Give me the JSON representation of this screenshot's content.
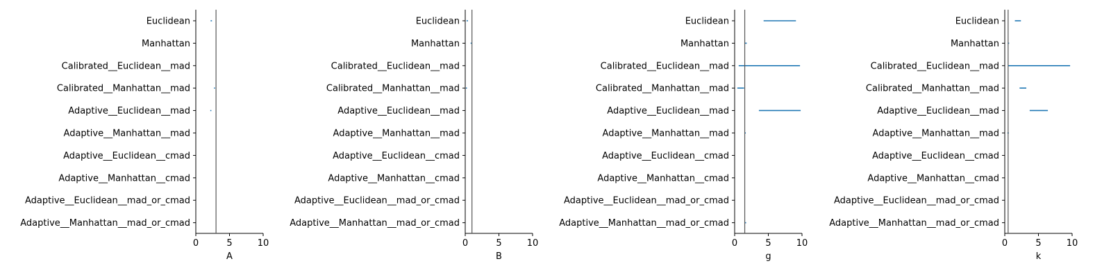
{
  "chart_data": [
    {
      "type": "errorbar",
      "xlabel": "A",
      "xlim": [
        0,
        10
      ],
      "xticks": [
        0,
        5,
        10
      ],
      "categories": [
        "Euclidean",
        "Manhattan",
        "Calibrated__Euclidean__mad",
        "Calibrated__Manhattan__mad",
        "Adaptive__Euclidean__mad",
        "Adaptive__Manhattan__mad",
        "Adaptive__Euclidean__cmad",
        "Adaptive__Manhattan__cmad",
        "Adaptive__Euclidean__mad_or_cmad",
        "Adaptive__Manhattan__mad_or_cmad"
      ],
      "intervals": [
        [
          2.2,
          2.4
        ],
        null,
        null,
        [
          2.7,
          2.8
        ],
        [
          2.15,
          2.3
        ],
        null,
        null,
        null,
        null,
        null
      ],
      "reference_line": 3.0
    },
    {
      "type": "errorbar",
      "xlabel": "B",
      "xlim": [
        0,
        10
      ],
      "xticks": [
        0,
        5,
        10
      ],
      "categories": [
        "Euclidean",
        "Manhattan",
        "Calibrated__Euclidean__mad",
        "Calibrated__Manhattan__mad",
        "Adaptive__Euclidean__mad",
        "Adaptive__Manhattan__mad",
        "Adaptive__Euclidean__cmad",
        "Adaptive__Manhattan__cmad",
        "Adaptive__Euclidean__mad_or_cmad",
        "Adaptive__Manhattan__mad_or_cmad"
      ],
      "intervals": [
        [
          0.2,
          0.4
        ],
        [
          0.8,
          0.95
        ],
        null,
        [
          0.1,
          0.25
        ],
        null,
        null,
        null,
        null,
        null,
        null
      ],
      "reference_line": 1.0
    },
    {
      "type": "errorbar",
      "xlabel": "g",
      "xlim": [
        0,
        10
      ],
      "xticks": [
        0,
        5,
        10
      ],
      "categories": [
        "Euclidean",
        "Manhattan",
        "Calibrated__Euclidean__mad",
        "Calibrated__Manhattan__mad",
        "Adaptive__Euclidean__mad",
        "Adaptive__Manhattan__mad",
        "Adaptive__Euclidean__cmad",
        "Adaptive__Manhattan__cmad",
        "Adaptive__Euclidean__mad_or_cmad",
        "Adaptive__Manhattan__mad_or_cmad"
      ],
      "intervals": [
        [
          4.3,
          9.1
        ],
        [
          1.55,
          1.8
        ],
        [
          0.6,
          9.7
        ],
        [
          0.4,
          1.4
        ],
        [
          3.6,
          9.8
        ],
        [
          1.5,
          1.65
        ],
        null,
        null,
        null,
        [
          1.55,
          1.7
        ]
      ],
      "reference_line": 1.5
    },
    {
      "type": "errorbar",
      "xlabel": "k",
      "xlim": [
        0,
        10
      ],
      "xticks": [
        0,
        5,
        10
      ],
      "categories": [
        "Euclidean",
        "Manhattan",
        "Calibrated__Euclidean__mad",
        "Calibrated__Manhattan__mad",
        "Adaptive__Euclidean__mad",
        "Adaptive__Manhattan__mad",
        "Adaptive__Euclidean__cmad",
        "Adaptive__Manhattan__cmad",
        "Adaptive__Euclidean__mad_or_cmad",
        "Adaptive__Manhattan__mad_or_cmad"
      ],
      "intervals": [
        [
          1.5,
          2.4
        ],
        [
          0.45,
          0.65
        ],
        [
          0.5,
          9.7
        ],
        [
          2.2,
          3.2
        ],
        [
          3.7,
          6.4
        ],
        [
          0.4,
          0.6
        ],
        null,
        null,
        null,
        null
      ],
      "reference_line": 0.5
    }
  ],
  "colors": {
    "interval": "#1f77b4",
    "reference_line": "#555555",
    "axis": "#000000"
  }
}
